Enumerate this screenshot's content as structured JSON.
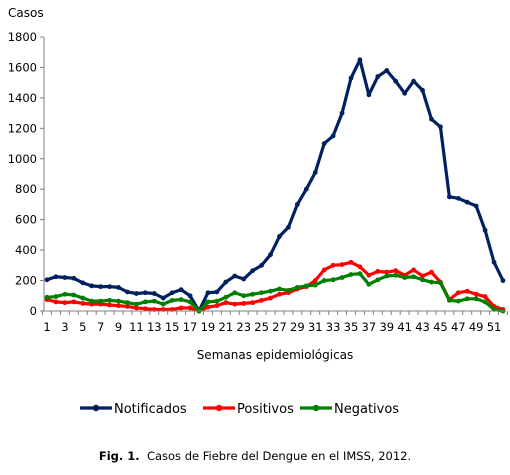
{
  "caption": {
    "label": "Fig. 1.",
    "text": "Casos de Fiebre del Dengue en el IMSS, 2012."
  },
  "chart_data": {
    "type": "line",
    "ylabel": "Casos",
    "xlabel": "Semanas epidemiológicas",
    "ylim": [
      0,
      1800
    ],
    "yticks": [
      0,
      200,
      400,
      600,
      800,
      1000,
      1200,
      1400,
      1600,
      1800
    ],
    "xlim": [
      1,
      52
    ],
    "xticks": [
      1,
      3,
      5,
      7,
      9,
      11,
      13,
      15,
      17,
      19,
      21,
      23,
      25,
      27,
      29,
      31,
      33,
      35,
      37,
      39,
      41,
      43,
      45,
      47,
      49,
      51
    ],
    "grid": false,
    "legend": "bottom",
    "x": [
      1,
      2,
      3,
      4,
      5,
      6,
      7,
      8,
      9,
      10,
      11,
      12,
      13,
      14,
      15,
      16,
      17,
      18,
      19,
      20,
      21,
      22,
      23,
      24,
      25,
      26,
      27,
      28,
      29,
      30,
      31,
      32,
      33,
      34,
      35,
      36,
      37,
      38,
      39,
      40,
      41,
      42,
      43,
      44,
      45,
      46,
      47,
      48,
      49,
      50,
      51,
      52
    ],
    "series": [
      {
        "name": "Notificados",
        "color": "#002060",
        "values": [
          205,
          225,
          220,
          215,
          185,
          165,
          160,
          160,
          155,
          125,
          115,
          120,
          115,
          85,
          120,
          140,
          100,
          0,
          120,
          125,
          190,
          230,
          210,
          265,
          300,
          370,
          490,
          550,
          700,
          800,
          910,
          1100,
          1150,
          1300,
          1530,
          1650,
          1420,
          1540,
          1580,
          1510,
          1430,
          1510,
          1450,
          1260,
          1210,
          750,
          740,
          715,
          690,
          530,
          320,
          200
        ]
      },
      {
        "name": "Positivos",
        "color": "#ff0000",
        "values": [
          75,
          60,
          55,
          60,
          50,
          45,
          45,
          40,
          35,
          30,
          20,
          15,
          10,
          10,
          10,
          20,
          20,
          0,
          25,
          35,
          55,
          45,
          50,
          55,
          70,
          85,
          110,
          120,
          145,
          160,
          200,
          270,
          300,
          305,
          320,
          290,
          235,
          260,
          255,
          265,
          235,
          270,
          230,
          255,
          190,
          75,
          120,
          130,
          110,
          95,
          30,
          10
        ]
      },
      {
        "name": "Negativos",
        "color": "#008000",
        "values": [
          90,
          95,
          110,
          105,
          85,
          65,
          65,
          70,
          65,
          55,
          45,
          60,
          65,
          45,
          70,
          75,
          60,
          0,
          60,
          65,
          90,
          120,
          100,
          110,
          120,
          130,
          145,
          135,
          155,
          165,
          170,
          200,
          205,
          220,
          240,
          245,
          175,
          205,
          230,
          235,
          220,
          225,
          205,
          190,
          185,
          70,
          65,
          80,
          80,
          60,
          10,
          0
        ]
      }
    ]
  }
}
